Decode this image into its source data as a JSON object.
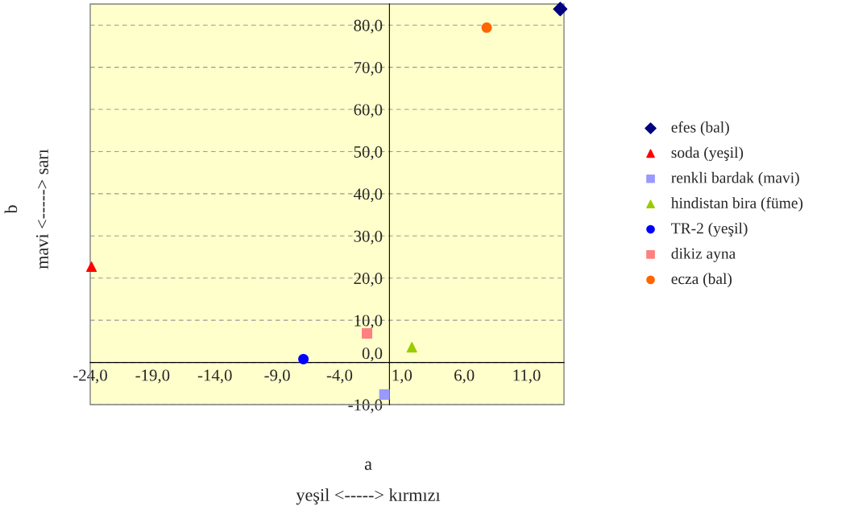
{
  "chart_data": {
    "type": "scatter",
    "xlabel": "a\nyeşil <-----> kırmızı",
    "ylabel": "b\nmavi <-----> sarı",
    "series": [
      {
        "name": "efes (bal)",
        "color": "#000080",
        "marker": "diamond",
        "x": [
          13.7
        ],
        "values": [
          83.8
        ]
      },
      {
        "name": "soda (yeşil)",
        "color": "#ff0000",
        "marker": "triangle",
        "x": [
          -23.9
        ],
        "values": [
          22.7
        ]
      },
      {
        "name": "renkli bardak (mavi)",
        "color": "#9999ff",
        "marker": "square",
        "x": [
          -0.4
        ],
        "values": [
          -7.6
        ]
      },
      {
        "name": "hindistan bira (füme)",
        "color": "#99cc00",
        "marker": "triangle",
        "x": [
          1.8
        ],
        "values": [
          3.6
        ]
      },
      {
        "name": "TR-2 (yeşil)",
        "color": "#0000ff",
        "marker": "circle",
        "x": [
          -6.9
        ],
        "values": [
          0.8
        ]
      },
      {
        "name": "dikiz ayna",
        "color": "#ff8080",
        "marker": "square",
        "x": [
          -1.8
        ],
        "values": [
          6.9
        ]
      },
      {
        "name": "ecza (bal)",
        "color": "#ff6600",
        "marker": "circle",
        "x": [
          7.8
        ],
        "values": [
          79.4
        ]
      }
    ],
    "xlim": [
      -24,
      14
    ],
    "ylim": [
      -10,
      85
    ],
    "xticks": [
      {
        "value": -24,
        "label": "-24,0"
      },
      {
        "value": -19,
        "label": "-19,0"
      },
      {
        "value": -14,
        "label": "-14,0"
      },
      {
        "value": -9,
        "label": "-9,0"
      },
      {
        "value": -4,
        "label": "-4,0"
      },
      {
        "value": 1,
        "label": "1,0"
      },
      {
        "value": 6,
        "label": "6,0"
      },
      {
        "value": 11,
        "label": "11,0"
      }
    ],
    "yticks": [
      {
        "value": -10,
        "label": "-10,0"
      },
      {
        "value": 0,
        "label": "0,0"
      },
      {
        "value": 10,
        "label": "10,0"
      },
      {
        "value": 20,
        "label": "20,0"
      },
      {
        "value": 30,
        "label": "30,0"
      },
      {
        "value": 40,
        "label": "40,0"
      },
      {
        "value": 50,
        "label": "50,0"
      },
      {
        "value": 60,
        "label": "60,0"
      },
      {
        "value": 70,
        "label": "70,0"
      },
      {
        "value": 80,
        "label": "80,0"
      }
    ],
    "grid": "y",
    "legend": "right"
  }
}
